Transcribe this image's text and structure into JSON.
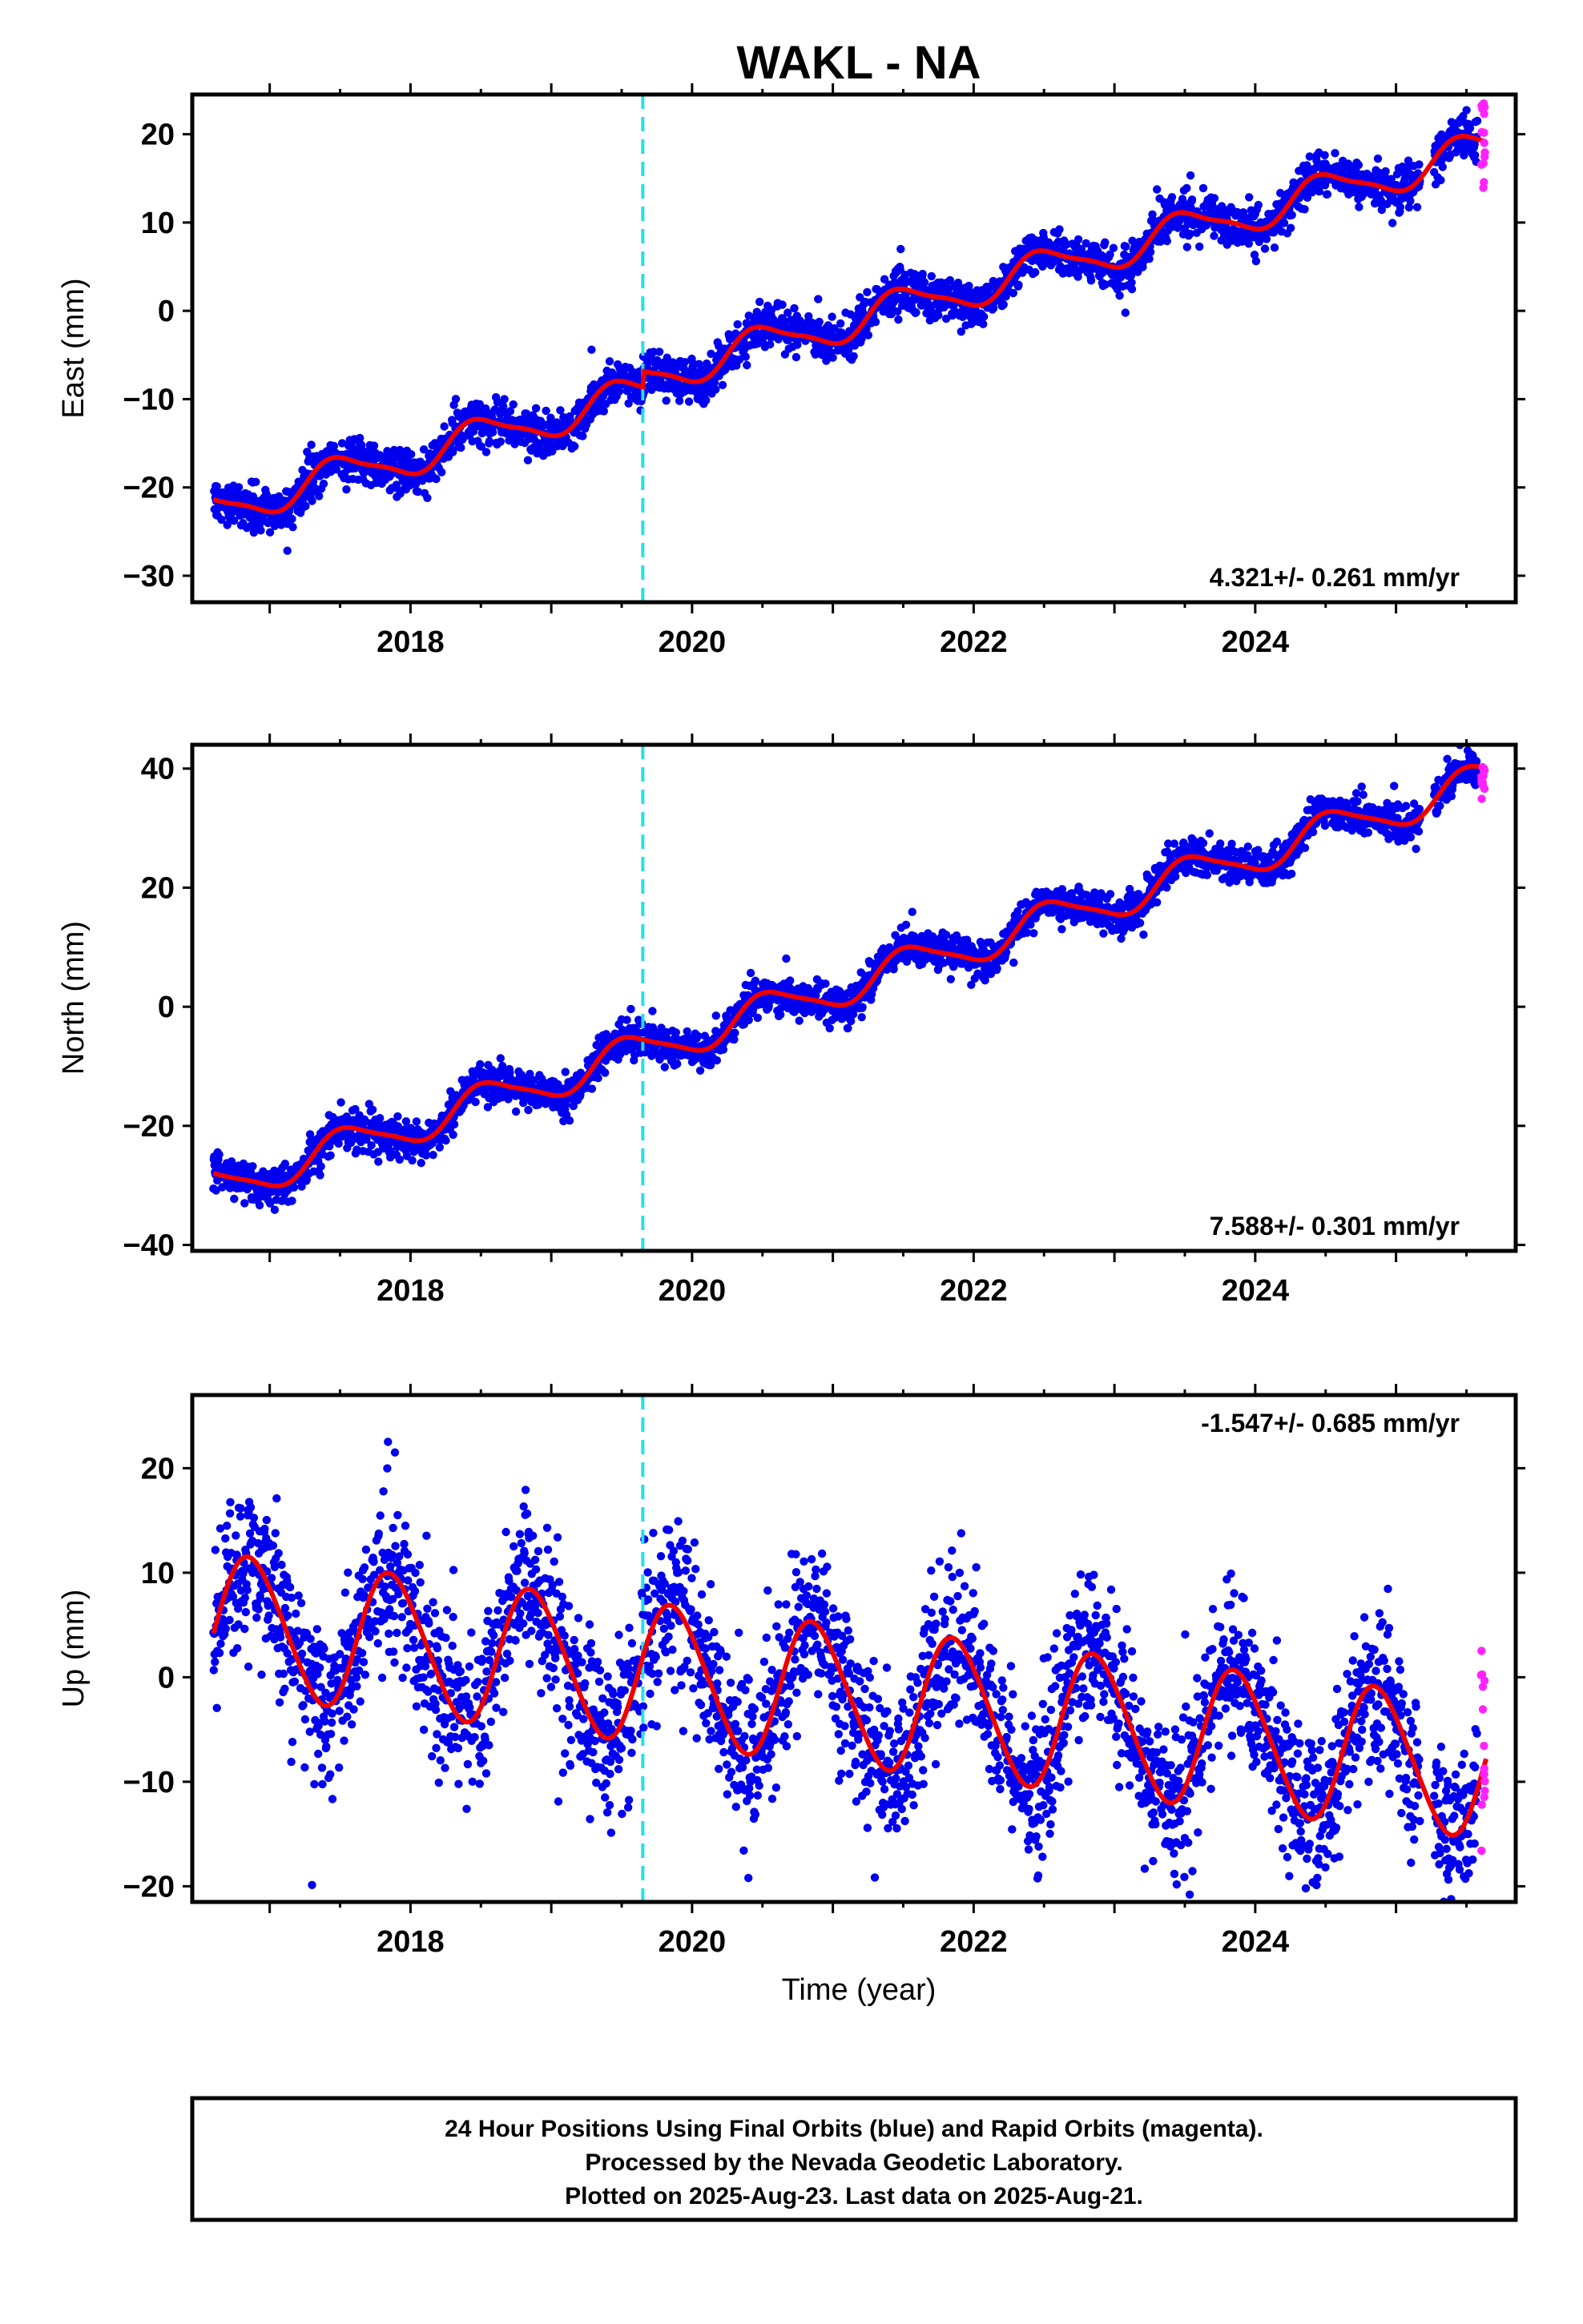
{
  "chart_data": {
    "title": "WAKL - NA",
    "type": "scatter",
    "xlabel": "Time (year)",
    "xlim": [
      2016.45,
      2025.85
    ],
    "x_ticks": [
      "2018",
      "2020",
      "2022",
      "2024"
    ],
    "x_tick_values": [
      2018,
      2020,
      2022,
      2024
    ],
    "colors": {
      "final": "#0000ee",
      "rapid": "#ff22ff",
      "model": "#ee0000",
      "event_line": "#22e0f0"
    },
    "event_line_year": 2019.65,
    "panels": [
      {
        "id": "east",
        "ylabel": "East (mm)",
        "ylim": [
          -33,
          24.5
        ],
        "y_ticks": [
          "20",
          "10",
          "0",
          "−10",
          "−20",
          "−30"
        ],
        "y_tick_values": [
          20,
          10,
          0,
          -10,
          -20,
          -30
        ],
        "rate_text": "4.321+/- 0.261 mm/yr",
        "rate_position": "bottom-right",
        "model": {
          "velocity_mm_yr": 4.321,
          "offset_mm": -22.5,
          "ref_year": 2016.6,
          "annual_amplitude_mm": 2.0,
          "annual_phase_year": 0.25,
          "semiannual_amplitude_mm": 0.5,
          "step_mm": 1.8,
          "step_year": 2019.65
        },
        "noise_mm": 1.2,
        "rapid_range": [
          13,
          23.5
        ]
      },
      {
        "id": "north",
        "ylabel": "North (mm)",
        "ylim": [
          -41,
          44
        ],
        "y_ticks": [
          "40",
          "20",
          "0",
          "−20",
          "−40"
        ],
        "y_tick_values": [
          40,
          20,
          0,
          -20,
          -40
        ],
        "rate_text": "7.588+/- 0.301 mm/yr",
        "rate_position": "bottom-right",
        "model": {
          "velocity_mm_yr": 7.588,
          "offset_mm": -30.5,
          "ref_year": 2016.6,
          "annual_amplitude_mm": 3.0,
          "annual_phase_year": 0.3,
          "semiannual_amplitude_mm": 0.6,
          "step_mm": 0,
          "step_year": 2019.65
        },
        "noise_mm": 1.5,
        "rapid_range": [
          34.5,
          41.5
        ]
      },
      {
        "id": "up",
        "ylabel": "Up (mm)",
        "ylim": [
          -21.5,
          27
        ],
        "y_ticks": [
          "20",
          "10",
          "0",
          "−10",
          "−20"
        ],
        "y_tick_values": [
          20,
          10,
          0,
          -10,
          -20
        ],
        "rate_text": "-1.547+/- 0.685 mm/yr",
        "rate_position": "top-right",
        "model": {
          "velocity_mm_yr": -1.547,
          "offset_mm": 5.2,
          "ref_year": 2016.6,
          "annual_amplitude_mm": 6.6,
          "annual_phase_year": 0.62,
          "semiannual_amplitude_mm": 0.6,
          "step_mm": 0,
          "step_year": 2019.65
        },
        "noise_mm": 3.8,
        "rapid_range": [
          -17,
          4.5
        ]
      }
    ],
    "data_span": {
      "start_year": 2016.6,
      "end_year": 2025.64,
      "rapid_start_year": 2025.58
    },
    "gaps": [
      [
        2025.17,
        2025.27
      ]
    ]
  },
  "footer": {
    "line1": "24 Hour Positions Using Final Orbits (blue) and Rapid Orbits (magenta).",
    "line2": "Processed by the Nevada Geodetic Laboratory.",
    "line3": "Plotted on 2025-Aug-23. Last data on 2025-Aug-21."
  }
}
